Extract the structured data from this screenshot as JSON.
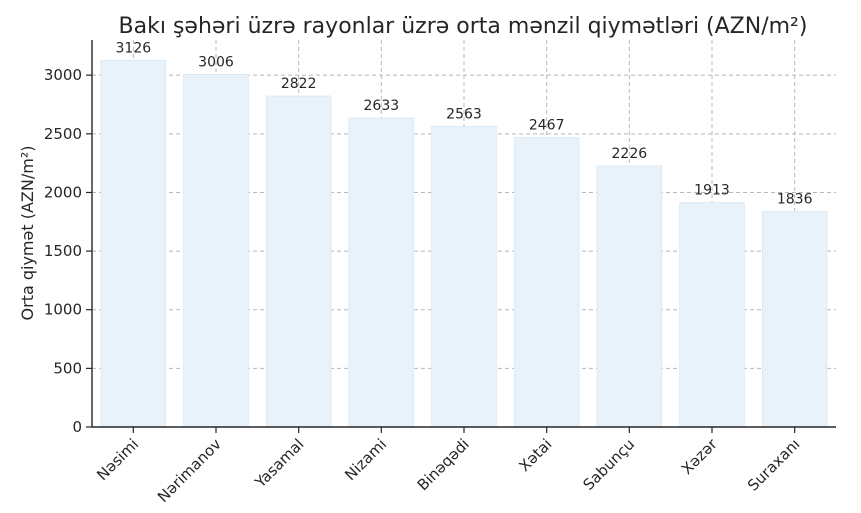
{
  "chart_data": {
    "type": "bar",
    "title": "Bakı şəhəri üzrə rayonlar üzrə orta mənzil qiymətləri (AZN/m²)",
    "xlabel": "",
    "ylabel": "Orta qiymət (AZN/m²)",
    "categories": [
      "Nəsimi",
      "Nərimanov",
      "Yasamal",
      "Nizami",
      "Binəqədi",
      "Xətai",
      "Sabunçu",
      "Xəzər",
      "Suraxanı"
    ],
    "values": [
      3126,
      3006,
      2822,
      2633,
      2563,
      2467,
      2226,
      1913,
      1836
    ],
    "ylim": [
      0,
      3300
    ],
    "yticks": [
      0,
      500,
      1000,
      1500,
      2000,
      2500,
      3000
    ],
    "grid": true,
    "bar_color": "#e8f2fb",
    "bar_edge_color": "#dbe9f6"
  }
}
